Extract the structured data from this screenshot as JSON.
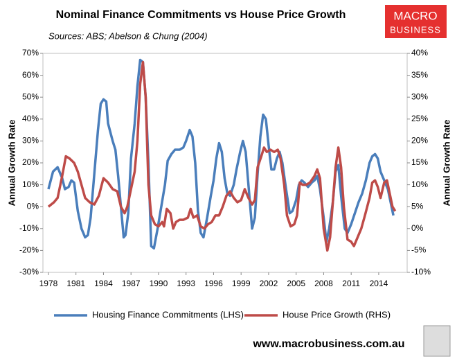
{
  "chart_data": {
    "type": "line",
    "title": "Nominal Finance Commitments vs House Price Growth",
    "subtitle": "Sources: ABS; Abelson & Chung (2004)",
    "y_label": "Annual Growth Rate",
    "y2_label": "Annual Growth Rate",
    "logo": [
      "MACRO",
      "BUSINESS"
    ],
    "footer": "www.macrobusiness.com.au",
    "xlim": [
      1977.4,
      2017.1
    ],
    "xticks": [
      1978,
      1981,
      1984,
      1987,
      1990,
      1993,
      1996,
      1999,
      2002,
      2005,
      2008,
      2011,
      2014
    ],
    "ylim": [
      -30,
      70
    ],
    "yticks": [
      {
        "value": -30,
        "label": "-30%"
      },
      {
        "value": -20,
        "label": "-20%"
      },
      {
        "value": -10,
        "label": "-10%"
      },
      {
        "value": 0,
        "label": "0%"
      },
      {
        "value": 10,
        "label": "10%"
      },
      {
        "value": 20,
        "label": "20%"
      },
      {
        "value": 30,
        "label": "30%"
      },
      {
        "value": 40,
        "label": "40%"
      },
      {
        "value": 50,
        "label": "50%"
      },
      {
        "value": 60,
        "label": "60%"
      },
      {
        "value": 70,
        "label": "70%"
      }
    ],
    "y2lim": [
      -10,
      40
    ],
    "y2ticks": [
      {
        "value": -10,
        "label": "-10%"
      },
      {
        "value": -5,
        "label": "-5%"
      },
      {
        "value": 0,
        "label": "0%"
      },
      {
        "value": 5,
        "label": "5%"
      },
      {
        "value": 10,
        "label": "10%"
      },
      {
        "value": 15,
        "label": "15%"
      },
      {
        "value": 20,
        "label": "20%"
      },
      {
        "value": 25,
        "label": "25%"
      },
      {
        "value": 30,
        "label": "30%"
      },
      {
        "value": 35,
        "label": "35%"
      },
      {
        "value": 40,
        "label": "40%"
      }
    ],
    "grid": false,
    "legend": "bottom",
    "series": [
      {
        "name": "Housing Finance Commitments (LHS)",
        "color": "#4a7ebb",
        "axis": "y",
        "x": [
          1978.0,
          1978.5,
          1979.0,
          1979.5,
          1979.8,
          1980.2,
          1980.5,
          1980.8,
          1981.2,
          1981.6,
          1982.0,
          1982.3,
          1982.6,
          1983.0,
          1983.4,
          1983.7,
          1984.0,
          1984.3,
          1984.5,
          1985.0,
          1985.3,
          1985.6,
          1985.9,
          1986.2,
          1986.4,
          1986.7,
          1987.0,
          1987.4,
          1987.7,
          1988.0,
          1988.3,
          1988.6,
          1988.9,
          1989.2,
          1989.5,
          1989.9,
          1990.3,
          1990.7,
          1991.0,
          1991.4,
          1991.8,
          1992.3,
          1992.7,
          1993.0,
          1993.4,
          1993.7,
          1994.0,
          1994.3,
          1994.6,
          1994.9,
          1995.3,
          1995.7,
          1996.0,
          1996.3,
          1996.6,
          1996.9,
          1997.2,
          1997.5,
          1997.8,
          1998.2,
          1998.5,
          1998.9,
          1999.2,
          1999.5,
          1999.8,
          2000.2,
          2000.5,
          2000.8,
          2001.1,
          2001.4,
          2001.7,
          2002.0,
          2002.3,
          2002.6,
          2002.9,
          2003.2,
          2003.5,
          2003.9,
          2004.3,
          2004.6,
          2005.0,
          2005.3,
          2005.6,
          2005.9,
          2006.3,
          2006.7,
          2007.0,
          2007.3,
          2007.6,
          2008.0,
          2008.3,
          2008.6,
          2009.0,
          2009.3,
          2009.6,
          2009.9,
          2010.3,
          2010.6,
          2011.0,
          2011.4,
          2011.8,
          2012.2,
          2012.6,
          2013.0,
          2013.3,
          2013.6,
          2013.9,
          2014.2,
          2014.6,
          2015.0,
          2015.3,
          2015.6
        ],
        "values": [
          8,
          16,
          18,
          13,
          8,
          9,
          12,
          11,
          -2,
          -10,
          -14,
          -13,
          -5,
          15,
          35,
          47,
          49,
          48,
          38,
          30,
          26,
          14,
          0,
          -14,
          -13,
          -3,
          22,
          38,
          55,
          67,
          66,
          50,
          20,
          -18,
          -19,
          -10,
          0,
          10,
          21,
          24,
          26,
          26,
          27,
          30,
          35,
          32,
          20,
          -2,
          -12,
          -14,
          -5,
          5,
          12,
          22,
          29,
          25,
          13,
          6,
          5,
          10,
          17,
          25,
          30,
          25,
          10,
          -10,
          -5,
          15,
          32,
          42,
          40,
          28,
          17,
          17,
          22,
          25,
          20,
          8,
          -3,
          -2,
          3,
          10,
          12,
          11,
          9,
          11,
          12,
          14,
          8,
          -5,
          -16,
          -10,
          2,
          16,
          19,
          5,
          -10,
          -12,
          -8,
          -3,
          2,
          6,
          12,
          20,
          23,
          24,
          22,
          16,
          12,
          8,
          2,
          -4
        ]
      },
      {
        "name": "House Price Growth (RHS)",
        "color": "#be4b48",
        "axis": "y2",
        "x": [
          1978.0,
          1978.6,
          1979.0,
          1979.5,
          1979.9,
          1980.3,
          1980.8,
          1981.2,
          1981.6,
          1982.0,
          1982.5,
          1983.0,
          1983.5,
          1984.0,
          1984.5,
          1985.0,
          1985.5,
          1985.9,
          1986.3,
          1986.6,
          1987.0,
          1987.4,
          1987.7,
          1988.0,
          1988.3,
          1988.6,
          1988.9,
          1989.2,
          1989.6,
          1990.0,
          1990.4,
          1990.6,
          1990.9,
          1991.3,
          1991.6,
          1991.9,
          1992.3,
          1992.7,
          1993.2,
          1993.5,
          1993.8,
          1994.2,
          1994.6,
          1995.0,
          1995.4,
          1995.8,
          1996.2,
          1996.6,
          1997.0,
          1997.4,
          1997.8,
          1998.2,
          1998.6,
          1999.0,
          1999.4,
          1999.8,
          2000.2,
          2000.5,
          2000.8,
          2001.2,
          2001.5,
          2001.8,
          2002.2,
          2002.6,
          2003.0,
          2003.3,
          2003.7,
          2004.0,
          2004.4,
          2004.8,
          2005.1,
          2005.4,
          2005.7,
          2006.1,
          2006.5,
          2007.0,
          2007.3,
          2007.6,
          2008.0,
          2008.4,
          2008.7,
          2009.0,
          2009.3,
          2009.6,
          2009.9,
          2010.2,
          2010.6,
          2011.0,
          2011.3,
          2011.7,
          2012.1,
          2012.5,
          2013.0,
          2013.3,
          2013.6,
          2013.9,
          2014.2,
          2014.6,
          2014.9,
          2015.2,
          2015.5,
          2015.8
        ],
        "values": [
          5,
          6,
          7,
          12,
          16.5,
          16,
          15,
          13,
          10,
          7,
          6,
          5.5,
          7.5,
          11.5,
          10.5,
          9,
          8.5,
          5,
          3.5,
          5,
          9,
          13,
          20,
          33,
          38,
          30,
          10,
          3,
          1,
          0.5,
          1.5,
          0.5,
          4.5,
          3.5,
          0,
          1.5,
          2,
          2,
          2.5,
          4.5,
          2.5,
          3,
          0.5,
          0,
          1,
          1.5,
          3,
          3,
          5,
          7.5,
          8.5,
          7,
          6,
          6.5,
          9,
          7,
          5.5,
          6.5,
          14,
          16.5,
          18.5,
          17.5,
          18,
          17.5,
          18,
          16,
          10,
          3,
          0.5,
          1,
          3,
          10.5,
          10,
          10,
          10.5,
          12,
          13.5,
          11.5,
          0,
          -5,
          -2,
          6,
          14,
          18.5,
          14,
          5,
          -2.5,
          -3,
          -4,
          -2,
          0,
          3,
          7,
          10.5,
          11,
          9.5,
          7,
          10.5,
          11,
          8,
          5,
          4
        ]
      }
    ]
  }
}
